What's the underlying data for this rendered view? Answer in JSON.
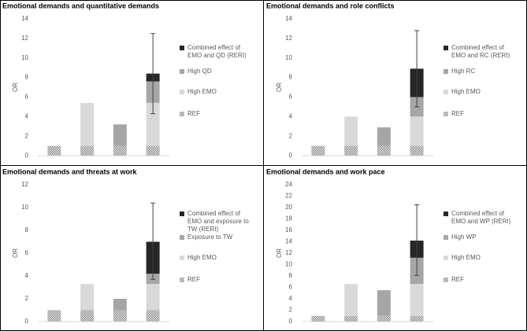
{
  "chart_data": [
    {
      "type": "bar",
      "stacked": true,
      "title": "Emotional demands and quantitative demands",
      "y_label": "OR",
      "categories": [
        null,
        null,
        null,
        null
      ],
      "ylim": [
        0,
        14
      ],
      "yticks": [
        0,
        2,
        4,
        6,
        8,
        10,
        12,
        14
      ],
      "series": [
        {
          "name": "REF",
          "color": "#bfbfbf",
          "hatch": true,
          "values": [
            1,
            1,
            1,
            1
          ]
        },
        {
          "name": "High EMO",
          "color": "#d9d9d9",
          "values": [
            null,
            4.4,
            null,
            4.4
          ]
        },
        {
          "name": "High QD",
          "color": "#a6a6a6",
          "values": [
            null,
            null,
            2.2,
            2.2
          ]
        },
        {
          "name": "Combined effect of EMO and QD (RERI)",
          "color": "#262626",
          "values": [
            null,
            null,
            null,
            0.8
          ]
        }
      ],
      "ci_low": [
        null,
        null,
        null,
        4.3
      ],
      "ci_high": [
        null,
        null,
        null,
        12.5
      ]
    },
    {
      "type": "bar",
      "stacked": true,
      "title": "Emotional demands and role conflicts",
      "y_label": "OR",
      "categories": [
        null,
        null,
        null,
        null
      ],
      "ylim": [
        0,
        14
      ],
      "yticks": [
        0,
        2,
        4,
        6,
        8,
        10,
        12,
        14
      ],
      "series": [
        {
          "name": "REF",
          "color": "#bfbfbf",
          "hatch": true,
          "values": [
            1,
            1,
            1,
            1
          ]
        },
        {
          "name": "High EMO",
          "color": "#d9d9d9",
          "values": [
            null,
            3.0,
            null,
            3.0
          ]
        },
        {
          "name": "High RC",
          "color": "#a6a6a6",
          "values": [
            null,
            null,
            1.9,
            2.0
          ]
        },
        {
          "name": "Combined effect of EMO and RC (RERI)",
          "color": "#262626",
          "values": [
            null,
            null,
            null,
            2.9
          ]
        }
      ],
      "ci_low": [
        null,
        null,
        null,
        5.0
      ],
      "ci_high": [
        null,
        null,
        null,
        12.8
      ]
    },
    {
      "type": "bar",
      "stacked": true,
      "title": "Emotional demands and threats at work",
      "y_label": "OR",
      "categories": [
        null,
        null,
        null,
        null
      ],
      "ylim": [
        0,
        12
      ],
      "yticks": [
        0,
        2,
        4,
        6,
        8,
        10,
        12
      ],
      "series": [
        {
          "name": "REF",
          "color": "#bfbfbf",
          "hatch": true,
          "values": [
            1,
            1,
            1,
            1
          ]
        },
        {
          "name": "High EMO",
          "color": "#d9d9d9",
          "values": [
            null,
            2.3,
            null,
            2.3
          ]
        },
        {
          "name": "Exposure to TW",
          "color": "#a6a6a6",
          "values": [
            null,
            null,
            1.0,
            0.9
          ]
        },
        {
          "name": "Combined effect of EMO and exposure to TW (RERI)",
          "color": "#262626",
          "values": [
            null,
            null,
            null,
            2.8
          ]
        }
      ],
      "ci_low": [
        null,
        null,
        null,
        3.7
      ],
      "ci_high": [
        null,
        null,
        null,
        10.4
      ]
    },
    {
      "type": "bar",
      "stacked": true,
      "title": "Emotional demands and work pace",
      "y_label": "OR",
      "categories": [
        null,
        null,
        null,
        null
      ],
      "ylim": [
        0,
        24
      ],
      "yticks": [
        0,
        2,
        4,
        6,
        8,
        10,
        12,
        14,
        16,
        18,
        20,
        22,
        24
      ],
      "series": [
        {
          "name": "REF",
          "color": "#bfbfbf",
          "hatch": true,
          "values": [
            1,
            1,
            1,
            1
          ]
        },
        {
          "name": "High EMO",
          "color": "#d9d9d9",
          "values": [
            null,
            5.6,
            null,
            5.6
          ]
        },
        {
          "name": "High WP",
          "color": "#a6a6a6",
          "values": [
            null,
            null,
            4.5,
            4.6
          ]
        },
        {
          "name": "Combined effect of EMO and WP (RERI)",
          "color": "#262626",
          "values": [
            null,
            null,
            null,
            3.0
          ]
        }
      ],
      "ci_low": [
        null,
        null,
        null,
        8.1
      ],
      "ci_high": [
        null,
        null,
        null,
        20.5
      ]
    }
  ]
}
